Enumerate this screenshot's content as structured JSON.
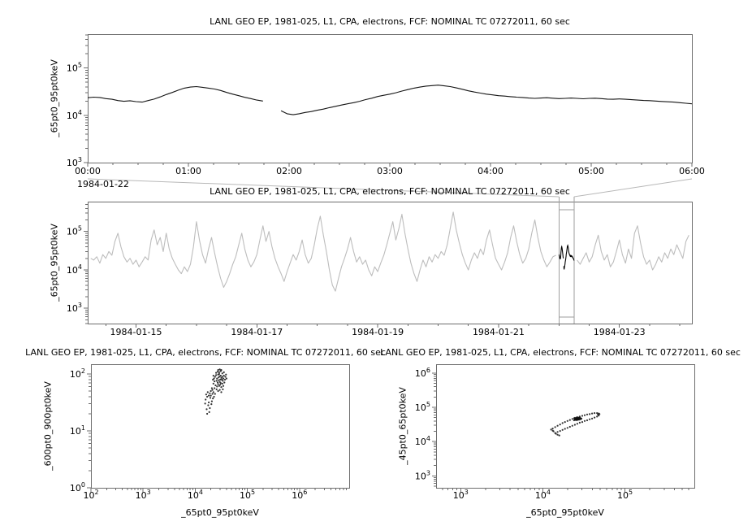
{
  "colors": {
    "line": "#141414",
    "context_line": "#bdbdbd",
    "highlight": "#000000",
    "frame": "#6e6e6e",
    "selection": "#9e9e9e",
    "connector": "#b8b8b8",
    "scatter": "#111111",
    "text": "#000000"
  },
  "chart_data": [
    {
      "id": "ts-zoom",
      "type": "line",
      "title": "LANL GEO EP, 1981-025, L1, CPA, electrons, FCF: NOMINAL TC 07272011, 60 sec",
      "ylabel": "_65pt0_95pt0keV",
      "xlabel": "",
      "x_context_label": "1984-01-22",
      "xscale": "linear",
      "yscale": "log",
      "xlim": [
        0,
        6
      ],
      "ylim_exp": [
        3,
        5.716
      ],
      "xminor": 0.25,
      "xticks": [
        {
          "v": 0,
          "label": "00:00"
        },
        {
          "v": 1,
          "label": "01:00"
        },
        {
          "v": 2,
          "label": "02:00"
        },
        {
          "v": 3,
          "label": "03:00"
        },
        {
          "v": 4,
          "label": "04:00"
        },
        {
          "v": 5,
          "label": "05:00"
        },
        {
          "v": 6,
          "label": "06:00"
        }
      ],
      "yticks_exp": [
        3,
        4,
        5
      ],
      "x_start": 0,
      "x_step": 0.06,
      "y": [
        23500,
        24200,
        23800,
        22500,
        21800,
        20500,
        19800,
        20300,
        19500,
        19000,
        20500,
        22000,
        24500,
        27500,
        30500,
        34000,
        37500,
        39500,
        40500,
        39000,
        37500,
        36000,
        33500,
        30500,
        28000,
        26000,
        24000,
        22500,
        21000,
        20000,
        null,
        null,
        12500,
        10800,
        10300,
        10800,
        11500,
        12000,
        12800,
        13500,
        14500,
        15500,
        16500,
        17500,
        18500,
        19800,
        21500,
        23000,
        25000,
        26500,
        28000,
        30000,
        32500,
        35000,
        37500,
        39500,
        41500,
        42500,
        43500,
        42000,
        40500,
        38000,
        35500,
        33000,
        31000,
        29500,
        28000,
        27000,
        26000,
        25500,
        24800,
        24200,
        23800,
        23200,
        22800,
        23200,
        23500,
        23000,
        22500,
        22800,
        23200,
        22800,
        22400,
        22800,
        23000,
        22500,
        22000,
        21800,
        22200,
        21800,
        21400,
        21000,
        20600,
        20400,
        20000,
        19600,
        19300,
        19000,
        18500,
        18000,
        17500
      ]
    },
    {
      "id": "ts-context",
      "type": "line",
      "title": "LANL GEO EP, 1981-025, L1, CPA, electrons, FCF: NOMINAL TC 07272011, 60 sec",
      "ylabel": "_65pt0_95pt0keV",
      "xlabel": "",
      "xscale": "linear",
      "yscale": "log",
      "xlim": [
        14.2,
        24.2
      ],
      "ylim_exp": [
        2.602,
        5.778
      ],
      "xminor": 0.5,
      "xticks": [
        {
          "v": 15,
          "label": "1984-01-15"
        },
        {
          "v": 17,
          "label": "1984-01-17"
        },
        {
          "v": 19,
          "label": "1984-01-19"
        },
        {
          "v": 21,
          "label": "1984-01-21"
        },
        {
          "v": 23,
          "label": "1984-01-23"
        }
      ],
      "yticks_exp": [
        3,
        4,
        5
      ],
      "selection": {
        "x0": 22.0,
        "x1": 22.25,
        "ref": 0
      },
      "x_start": 14.25,
      "x_step": 0.05,
      "y": [
        20000,
        18000,
        22000,
        15000,
        25000,
        20000,
        30000,
        24000,
        55000,
        90000,
        40000,
        22000,
        16000,
        20000,
        14000,
        18000,
        12000,
        16000,
        22000,
        18000,
        60000,
        110000,
        45000,
        70000,
        30000,
        90000,
        35000,
        20000,
        14000,
        10000,
        8000,
        12000,
        9000,
        14000,
        40000,
        180000,
        60000,
        25000,
        15000,
        35000,
        70000,
        28000,
        12000,
        6000,
        3500,
        5000,
        8000,
        14000,
        22000,
        45000,
        90000,
        35000,
        18000,
        12000,
        16000,
        25000,
        60000,
        140000,
        55000,
        100000,
        40000,
        20000,
        12000,
        8000,
        5000,
        9000,
        15000,
        25000,
        18000,
        30000,
        60000,
        25000,
        15000,
        20000,
        45000,
        120000,
        250000,
        80000,
        30000,
        10000,
        4000,
        2800,
        6000,
        12000,
        20000,
        35000,
        70000,
        30000,
        16000,
        22000,
        14000,
        18000,
        10000,
        7000,
        12000,
        9000,
        15000,
        24000,
        45000,
        90000,
        180000,
        60000,
        120000,
        280000,
        90000,
        35000,
        15000,
        8000,
        5000,
        10000,
        18000,
        12000,
        22000,
        16000,
        25000,
        20000,
        30000,
        24000,
        45000,
        120000,
        320000,
        110000,
        50000,
        25000,
        15000,
        10000,
        18000,
        28000,
        20000,
        35000,
        25000,
        60000,
        110000,
        45000,
        20000,
        14000,
        10000,
        16000,
        28000,
        70000,
        140000,
        55000,
        25000,
        15000,
        20000,
        35000,
        90000,
        200000,
        70000,
        30000,
        18000,
        12000,
        16000,
        22000,
        24000,
        null,
        null,
        null,
        null,
        null,
        null,
        18000,
        14000,
        20000,
        28000,
        16000,
        22000,
        45000,
        80000,
        30000,
        18000,
        25000,
        12000,
        16000,
        30000,
        60000,
        25000,
        15000,
        35000,
        20000,
        90000,
        140000,
        50000,
        22000,
        14000,
        18000,
        10000,
        14000,
        22000,
        16000,
        28000,
        20000,
        35000,
        25000,
        45000,
        30000,
        20000,
        55000,
        80000
      ]
    },
    {
      "id": "scatter-left",
      "type": "scatter",
      "title": "LANL GEO EP, 1981-025, L1, CPA, electrons, FCF: NOMINAL TC 07272011, 60 sec",
      "ylabel": "_600pt0_900pt0keV",
      "xlabel": "_65pt0_95pt0keV",
      "xscale": "log",
      "yscale": "log",
      "xlim_exp": [
        2,
        6.954
      ],
      "ylim_exp": [
        0,
        2.171
      ],
      "xticks_exp": [
        2,
        3,
        4,
        5,
        6
      ],
      "yticks_exp": [
        0,
        1,
        2
      ],
      "points_log10": [
        [
          4.38,
          1.95
        ],
        [
          4.4,
          1.98
        ],
        [
          4.42,
          1.92
        ],
        [
          4.44,
          1.99
        ],
        [
          4.45,
          1.94
        ],
        [
          4.46,
          2.0
        ],
        [
          4.47,
          1.96
        ],
        [
          4.48,
          1.9
        ],
        [
          4.49,
          1.97
        ],
        [
          4.5,
          1.93
        ],
        [
          4.41,
          1.88
        ],
        [
          4.43,
          1.85
        ],
        [
          4.45,
          1.89
        ],
        [
          4.47,
          1.86
        ],
        [
          4.49,
          1.84
        ],
        [
          4.51,
          1.9
        ],
        [
          4.52,
          1.95
        ],
        [
          4.53,
          1.88
        ],
        [
          4.54,
          1.92
        ],
        [
          4.55,
          1.97
        ],
        [
          4.39,
          1.8
        ],
        [
          4.42,
          1.78
        ],
        [
          4.44,
          1.82
        ],
        [
          4.46,
          1.79
        ],
        [
          4.48,
          1.81
        ],
        [
          4.5,
          1.77
        ],
        [
          4.52,
          1.83
        ],
        [
          4.54,
          1.79
        ],
        [
          4.56,
          1.85
        ],
        [
          4.57,
          1.9
        ],
        [
          4.36,
          1.92
        ],
        [
          4.37,
          1.87
        ],
        [
          4.35,
          1.97
        ],
        [
          4.34,
          1.9
        ],
        [
          4.4,
          2.02
        ],
        [
          4.43,
          2.04
        ],
        [
          4.46,
          2.03
        ],
        [
          4.49,
          2.05
        ],
        [
          4.52,
          2.01
        ],
        [
          4.55,
          2.03
        ],
        [
          4.58,
          1.95
        ],
        [
          4.59,
          1.99
        ],
        [
          4.6,
          1.92
        ],
        [
          4.41,
          1.73
        ],
        [
          4.44,
          1.7
        ],
        [
          4.47,
          1.72
        ],
        [
          4.5,
          1.68
        ],
        [
          4.53,
          1.73
        ],
        [
          4.37,
          1.75
        ],
        [
          4.35,
          1.83
        ],
        [
          4.2,
          1.55
        ],
        [
          4.23,
          1.6
        ],
        [
          4.26,
          1.5
        ],
        [
          4.29,
          1.58
        ],
        [
          4.32,
          1.52
        ],
        [
          4.25,
          1.45
        ],
        [
          4.28,
          1.4
        ],
        [
          4.31,
          1.47
        ],
        [
          4.22,
          1.38
        ],
        [
          4.27,
          1.33
        ],
        [
          4.3,
          1.62
        ],
        [
          4.33,
          1.65
        ],
        [
          4.24,
          1.68
        ],
        [
          4.21,
          1.64
        ],
        [
          4.34,
          1.57
        ],
        [
          4.19,
          1.48
        ],
        [
          4.23,
          1.3
        ],
        [
          4.26,
          1.62
        ],
        [
          4.36,
          1.6
        ],
        [
          4.38,
          1.65
        ],
        [
          4.33,
          1.72
        ],
        [
          4.3,
          1.7
        ],
        [
          4.28,
          1.66
        ],
        [
          4.35,
          1.68
        ],
        [
          4.32,
          1.75
        ],
        [
          4.44,
          2.07
        ],
        [
          4.47,
          2.08
        ],
        [
          4.5,
          2.07
        ]
      ]
    },
    {
      "id": "scatter-right",
      "type": "scatter",
      "title": "LANL GEO EP, 1981-025, L1, CPA, electrons, FCF: NOMINAL TC 07272011, 60 sec",
      "ylabel": "_45pt0_65pt0keV",
      "xlabel": "_65pt0_95pt0keV",
      "xscale": "log",
      "yscale": "log",
      "xlim_exp": [
        2.7,
        5.845
      ],
      "ylim_exp": [
        2.653,
        6.255
      ],
      "xticks_exp": [
        3,
        4,
        5
      ],
      "yticks_exp": [
        3,
        4,
        5,
        6
      ],
      "points_log10": [
        [
          4.12,
          4.38
        ],
        [
          4.15,
          4.42
        ],
        [
          4.18,
          4.46
        ],
        [
          4.21,
          4.5
        ],
        [
          4.24,
          4.54
        ],
        [
          4.27,
          4.57
        ],
        [
          4.3,
          4.6
        ],
        [
          4.33,
          4.63
        ],
        [
          4.36,
          4.66
        ],
        [
          4.39,
          4.69
        ],
        [
          4.42,
          4.71
        ],
        [
          4.45,
          4.73
        ],
        [
          4.48,
          4.75
        ],
        [
          4.51,
          4.77
        ],
        [
          4.54,
          4.79
        ],
        [
          4.57,
          4.8
        ],
        [
          4.6,
          4.82
        ],
        [
          4.63,
          4.83
        ],
        [
          4.66,
          4.83
        ],
        [
          4.15,
          4.25
        ],
        [
          4.18,
          4.28
        ],
        [
          4.21,
          4.31
        ],
        [
          4.24,
          4.34
        ],
        [
          4.27,
          4.37
        ],
        [
          4.3,
          4.4
        ],
        [
          4.33,
          4.43
        ],
        [
          4.36,
          4.46
        ],
        [
          4.39,
          4.49
        ],
        [
          4.42,
          4.52
        ],
        [
          4.45,
          4.55
        ],
        [
          4.48,
          4.57
        ],
        [
          4.51,
          4.6
        ],
        [
          4.54,
          4.62
        ],
        [
          4.57,
          4.65
        ],
        [
          4.6,
          4.67
        ],
        [
          4.63,
          4.7
        ],
        [
          4.66,
          4.73
        ],
        [
          4.68,
          4.76
        ],
        [
          4.69,
          4.8
        ],
        [
          4.68,
          4.82
        ],
        [
          4.67,
          4.79
        ],
        [
          4.12,
          4.32
        ],
        [
          4.1,
          4.35
        ],
        [
          4.13,
          4.3
        ],
        [
          4.38,
          4.62
        ],
        [
          4.39,
          4.64
        ],
        [
          4.4,
          4.66
        ],
        [
          4.41,
          4.63
        ],
        [
          4.42,
          4.65
        ],
        [
          4.43,
          4.67
        ],
        [
          4.44,
          4.64
        ],
        [
          4.45,
          4.66
        ],
        [
          4.46,
          4.68
        ],
        [
          4.4,
          4.68
        ],
        [
          4.41,
          4.7
        ],
        [
          4.42,
          4.68
        ],
        [
          4.43,
          4.7
        ],
        [
          4.44,
          4.69
        ],
        [
          4.39,
          4.66
        ],
        [
          4.38,
          4.68
        ],
        [
          4.45,
          4.7
        ],
        [
          4.46,
          4.65
        ],
        [
          4.47,
          4.67
        ],
        [
          4.4,
          4.63
        ],
        [
          4.41,
          4.65
        ],
        [
          4.42,
          4.63
        ],
        [
          4.43,
          4.65
        ],
        [
          4.44,
          4.67
        ],
        [
          4.45,
          4.68
        ],
        [
          4.42,
          4.66
        ],
        [
          4.43,
          4.66
        ],
        [
          4.41,
          4.67
        ],
        [
          4.4,
          4.65
        ],
        [
          4.44,
          4.65
        ],
        [
          4.18,
          4.2
        ],
        [
          4.16,
          4.23
        ],
        [
          4.2,
          4.18
        ]
      ]
    }
  ]
}
